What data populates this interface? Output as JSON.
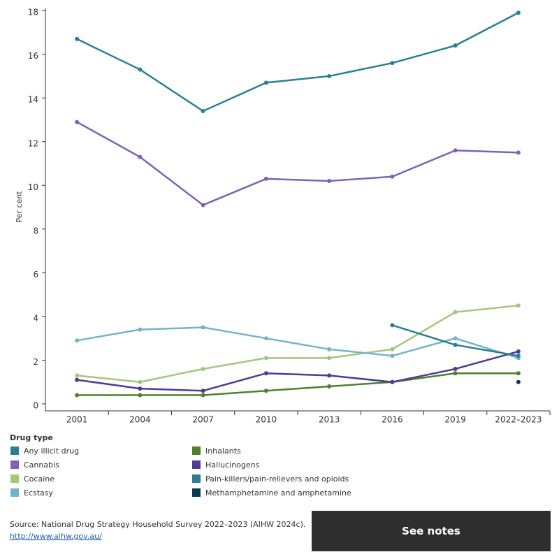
{
  "chart_data": {
    "type": "line",
    "y_label": "Per cent",
    "categories": [
      "2001",
      "2004",
      "2007",
      "2010",
      "2013",
      "2016",
      "2019",
      "2022–2023"
    ],
    "ylim": [
      0,
      18.1
    ],
    "yticks": [
      0,
      2,
      4,
      6,
      8,
      10,
      12,
      14,
      16,
      18
    ],
    "legend_title": "Drug type",
    "series": [
      {
        "name": "Any illicit drug",
        "color": "#2a7f96",
        "values": [
          16.7,
          15.3,
          13.4,
          14.7,
          15.0,
          15.6,
          16.4,
          17.9
        ]
      },
      {
        "name": "Cannabis",
        "color": "#7b64b5",
        "values": [
          12.9,
          11.3,
          9.1,
          10.3,
          10.2,
          10.4,
          11.6,
          11.5
        ]
      },
      {
        "name": "Cocaine",
        "color": "#a3c77f",
        "values": [
          1.3,
          1.0,
          1.6,
          2.1,
          2.1,
          2.5,
          4.2,
          4.5
        ]
      },
      {
        "name": "Ecstasy",
        "color": "#75b4c8",
        "values": [
          2.9,
          3.4,
          3.5,
          3.0,
          2.5,
          2.2,
          3.0,
          2.1
        ]
      },
      {
        "name": "Inhalants",
        "color": "#4f7f2f",
        "values": [
          0.4,
          0.4,
          0.4,
          0.6,
          0.8,
          1.0,
          1.4,
          1.4
        ]
      },
      {
        "name": "Hallucinogens",
        "color": "#4f3a94",
        "values": [
          1.1,
          0.7,
          0.6,
          1.4,
          1.3,
          1.0,
          1.6,
          2.4
        ]
      },
      {
        "name": "Pain-killers/pain-relievers and opioids",
        "color": "#2a7f96",
        "values": [
          null,
          null,
          null,
          null,
          null,
          3.6,
          2.7,
          2.2
        ]
      },
      {
        "name": "Methamphetamine and amphetamine",
        "color": "#0d3a50",
        "values": [
          null,
          null,
          null,
          null,
          null,
          null,
          null,
          1.0
        ]
      }
    ]
  },
  "footer": {
    "source": "Source:  National Drug Strategy Household Survey 2022–2023 (AIHW 2024c).",
    "link": "http://www.aihw.gov.au/",
    "button": "See notes"
  }
}
